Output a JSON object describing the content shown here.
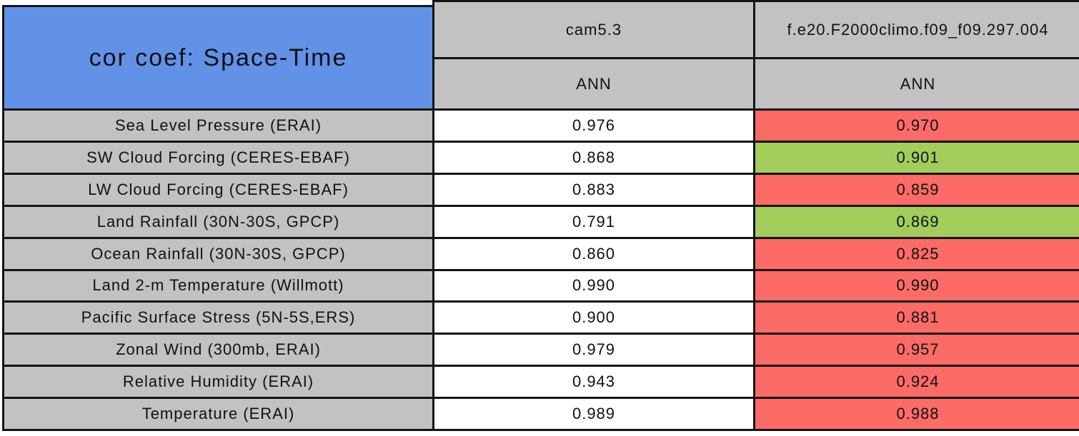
{
  "chart_data": {
    "type": "table",
    "title": "cor coef: Space-Time",
    "header": {
      "model_a": "cam5.3",
      "model_b": "f.e20.F2000climo.f09_f09.297.004",
      "season_a": "ANN",
      "season_b": "ANN"
    },
    "rows": [
      {
        "label": "Sea Level Pressure (ERAI)",
        "cam53": "0.976",
        "exp": "0.970",
        "flag": "worse"
      },
      {
        "label": "SW Cloud Forcing (CERES-EBAF)",
        "cam53": "0.868",
        "exp": "0.901",
        "flag": "better"
      },
      {
        "label": "LW Cloud Forcing (CERES-EBAF)",
        "cam53": "0.883",
        "exp": "0.859",
        "flag": "worse"
      },
      {
        "label": "Land Rainfall (30N-30S, GPCP)",
        "cam53": "0.791",
        "exp": "0.869",
        "flag": "better"
      },
      {
        "label": "Ocean Rainfall (30N-30S, GPCP)",
        "cam53": "0.860",
        "exp": "0.825",
        "flag": "worse"
      },
      {
        "label": "Land 2-m Temperature (Willmott)",
        "cam53": "0.990",
        "exp": "0.990",
        "flag": "worse"
      },
      {
        "label": "Pacific Surface Stress (5N-5S,ERS)",
        "cam53": "0.900",
        "exp": "0.881",
        "flag": "worse"
      },
      {
        "label": "Zonal Wind (300mb, ERAI)",
        "cam53": "0.979",
        "exp": "0.957",
        "flag": "worse"
      },
      {
        "label": "Relative Humidity (ERAI)",
        "cam53": "0.943",
        "exp": "0.924",
        "flag": "worse"
      },
      {
        "label": "Temperature (ERAI)",
        "cam53": "0.989",
        "exp": "0.988",
        "flag": "worse"
      }
    ]
  },
  "colors": {
    "header_blue": "#6292E8",
    "cell_gray": "#C2C2C2",
    "value_white": "#FFFFFF",
    "worse_red": "#FC6B66",
    "better_green": "#A2CD5A",
    "border_black": "#141414"
  }
}
